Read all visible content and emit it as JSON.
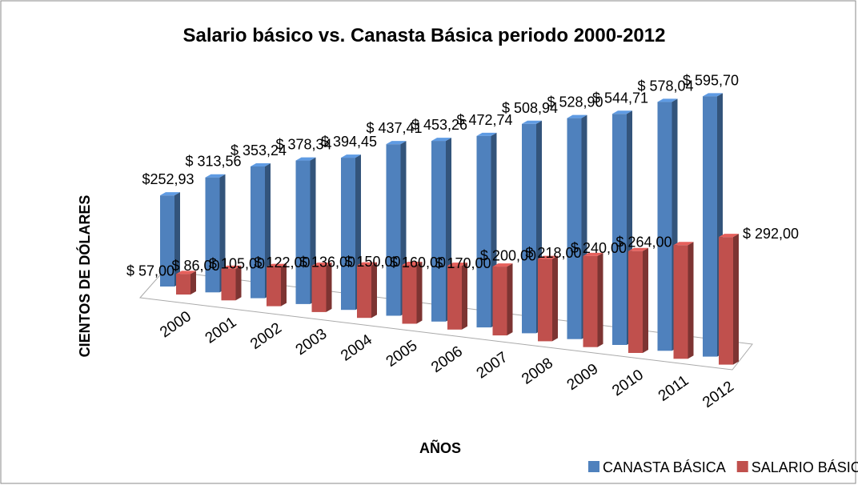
{
  "chart_data": {
    "type": "bar3d",
    "title": "Salario básico vs. Canasta Básica  periodo 2000-2012",
    "x_label": "AÑOS",
    "y_label": "CIENTOS DE DÓLARES",
    "categories": [
      "2000",
      "2001",
      "2002",
      "2003",
      "2004",
      "2005",
      "2006",
      "2007",
      "2008",
      "2009",
      "2010",
      "2011",
      "2012"
    ],
    "legend": "bottom-right",
    "series": [
      {
        "name": "CANASTA BÁSICA",
        "color": "#4f81bd",
        "values": [
          252.93,
          313.56,
          353.24,
          378.34,
          394.45,
          437.41,
          453.26,
          472.74,
          508.94,
          528.9,
          544.71,
          578.04,
          595.7
        ],
        "value_labels": [
          "$252,93",
          "$ 313,56",
          "$ 353,24",
          "$ 378,34",
          "$ 394,45",
          "$ 437,41",
          "$ 453,26",
          "$ 472,74",
          "$ 508,94",
          "$ 528,90",
          "$ 544,71",
          "$ 578,04",
          "$ 595,70"
        ]
      },
      {
        "name": "SALARIO BÁSICO",
        "color": "#c0504d",
        "values": [
          57,
          86,
          105,
          122,
          136,
          150,
          160,
          170,
          200,
          218,
          240,
          264,
          292
        ],
        "value_labels": [
          "$ 57,00",
          "$ 86,00",
          "$ 105,00",
          "$ 122,00",
          "$ 136,00",
          "$ 150,00",
          "$ 160,00",
          "$ 170,00",
          "$ 200,00",
          "$ 218,00",
          "$ 240,00",
          "$ 264,00",
          "$ 292,00"
        ]
      }
    ]
  }
}
